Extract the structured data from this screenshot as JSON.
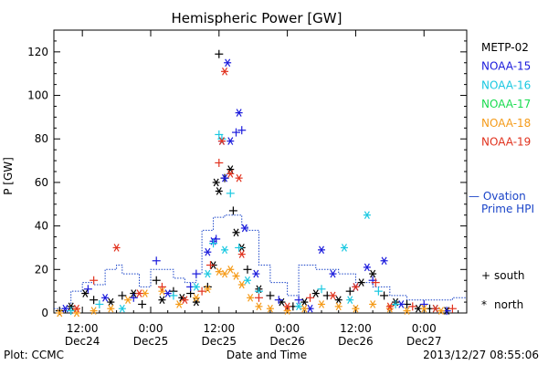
{
  "chart_data": {
    "type": "scatter",
    "title": "Hemispheric Power [GW]",
    "ylabel": "P [GW]",
    "xlabel": "Date and Time",
    "ylim": [
      0,
      130
    ],
    "yticks": [
      0,
      20,
      40,
      60,
      80,
      100,
      120
    ],
    "xlim": [
      "2013-12-24 07:00",
      "2013-12-27 07:30"
    ],
    "xticks": [
      {
        "t": "2013-12-24 12:00",
        "line1": "12:00",
        "line2": "Dec24"
      },
      {
        "t": "2013-12-25 00:00",
        "line1": "0:00",
        "line2": "Dec25"
      },
      {
        "t": "2013-12-25 12:00",
        "line1": "12:00",
        "line2": "Dec25"
      },
      {
        "t": "2013-12-26 00:00",
        "line1": "0:00",
        "line2": "Dec26"
      },
      {
        "t": "2013-12-26 12:00",
        "line1": "12:00",
        "line2": "Dec26"
      },
      {
        "t": "2013-12-27 00:00",
        "line1": "0:00",
        "line2": "Dec27"
      }
    ],
    "series": [
      {
        "name": "METP-02",
        "color": "#000000",
        "points": [
          [
            "2013-12-24 08:00",
            1,
            "s"
          ],
          [
            "2013-12-24 10:00",
            3,
            "n"
          ],
          [
            "2013-12-24 12:30",
            9,
            "n"
          ],
          [
            "2013-12-24 14:00",
            6,
            "s"
          ],
          [
            "2013-12-24 17:00",
            5,
            "n"
          ],
          [
            "2013-12-24 19:00",
            8,
            "s"
          ],
          [
            "2013-12-24 21:00",
            9,
            "n"
          ],
          [
            "2013-12-24 22:30",
            4,
            "s"
          ],
          [
            "2013-12-25 01:00",
            15,
            "s"
          ],
          [
            "2013-12-25 02:00",
            6,
            "n"
          ],
          [
            "2013-12-25 04:00",
            10,
            "s"
          ],
          [
            "2013-12-25 05:30",
            7,
            "n"
          ],
          [
            "2013-12-25 07:00",
            9,
            "s"
          ],
          [
            "2013-12-25 08:00",
            5,
            "n"
          ],
          [
            "2013-12-25 10:00",
            12,
            "s"
          ],
          [
            "2013-12-25 11:00",
            22,
            "n"
          ],
          [
            "2013-12-25 11:30",
            60,
            "n"
          ],
          [
            "2013-12-25 12:00",
            56,
            "n"
          ],
          [
            "2013-12-25 12:00",
            119,
            "s"
          ],
          [
            "2013-12-25 13:00",
            62,
            "s"
          ],
          [
            "2013-12-25 14:00",
            66,
            "n"
          ],
          [
            "2013-12-25 14:30",
            47,
            "s"
          ],
          [
            "2013-12-25 15:00",
            37,
            "n"
          ],
          [
            "2013-12-25 16:00",
            30,
            "n"
          ],
          [
            "2013-12-25 17:00",
            20,
            "s"
          ],
          [
            "2013-12-25 19:00",
            11,
            "n"
          ],
          [
            "2013-12-25 21:00",
            8,
            "s"
          ],
          [
            "2013-12-25 23:00",
            5,
            "n"
          ],
          [
            "2013-12-26 01:00",
            3,
            "s"
          ],
          [
            "2013-12-26 03:00",
            5,
            "n"
          ],
          [
            "2013-12-26 05:00",
            9,
            "n"
          ],
          [
            "2013-12-26 07:00",
            8,
            "s"
          ],
          [
            "2013-12-26 09:00",
            6,
            "n"
          ],
          [
            "2013-12-26 11:00",
            10,
            "s"
          ],
          [
            "2013-12-26 13:00",
            14,
            "n"
          ],
          [
            "2013-12-26 15:00",
            18,
            "n"
          ],
          [
            "2013-12-26 17:00",
            8,
            "s"
          ],
          [
            "2013-12-26 19:00",
            5,
            "n"
          ],
          [
            "2013-12-26 21:00",
            4,
            "s"
          ],
          [
            "2013-12-26 23:00",
            2,
            "n"
          ],
          [
            "2013-12-27 01:00",
            2,
            "s"
          ],
          [
            "2013-12-27 04:00",
            1,
            "n"
          ]
        ]
      },
      {
        "name": "NOAA-15",
        "color": "#1a1adc",
        "points": [
          [
            "2013-12-24 09:00",
            2,
            "n"
          ],
          [
            "2013-12-24 13:00",
            11,
            "s"
          ],
          [
            "2013-12-24 16:00",
            7,
            "n"
          ],
          [
            "2013-12-24 21:00",
            7,
            "s"
          ],
          [
            "2013-12-25 01:00",
            24,
            "s"
          ],
          [
            "2013-12-25 03:00",
            9,
            "n"
          ],
          [
            "2013-12-25 07:00",
            12,
            "s"
          ],
          [
            "2013-12-25 08:00",
            18,
            "s"
          ],
          [
            "2013-12-25 10:00",
            28,
            "n"
          ],
          [
            "2013-12-25 11:00",
            33,
            "n"
          ],
          [
            "2013-12-25 11:30",
            34,
            "s"
          ],
          [
            "2013-12-25 12:30",
            79,
            "n"
          ],
          [
            "2013-12-25 13:00",
            62,
            "n"
          ],
          [
            "2013-12-25 13:30",
            115,
            "n"
          ],
          [
            "2013-12-25 14:00",
            79,
            "n"
          ],
          [
            "2013-12-25 15:00",
            83,
            "s"
          ],
          [
            "2013-12-25 15:30",
            92,
            "n"
          ],
          [
            "2013-12-25 16:00",
            84,
            "s"
          ],
          [
            "2013-12-25 16:30",
            39,
            "n"
          ],
          [
            "2013-12-25 18:30",
            18,
            "n"
          ],
          [
            "2013-12-25 22:30",
            6,
            "s"
          ],
          [
            "2013-12-26 02:00",
            6,
            "s"
          ],
          [
            "2013-12-26 04:00",
            2,
            "n"
          ],
          [
            "2013-12-26 06:00",
            29,
            "n"
          ],
          [
            "2013-12-26 08:00",
            18,
            "n"
          ],
          [
            "2013-12-26 12:00",
            12,
            "n"
          ],
          [
            "2013-12-26 14:00",
            21,
            "n"
          ],
          [
            "2013-12-26 15:00",
            15,
            "s"
          ],
          [
            "2013-12-26 17:00",
            24,
            "n"
          ],
          [
            "2013-12-26 20:00",
            4,
            "n"
          ],
          [
            "2013-12-27 00:00",
            4,
            "s"
          ],
          [
            "2013-12-27 04:00",
            1,
            "s"
          ]
        ]
      },
      {
        "name": "NOAA-16",
        "color": "#19c8e1",
        "points": [
          [
            "2013-12-24 10:00",
            1,
            "s"
          ],
          [
            "2013-12-24 15:00",
            4,
            "s"
          ],
          [
            "2013-12-24 19:00",
            2,
            "n"
          ],
          [
            "2013-12-25 04:00",
            8,
            "s"
          ],
          [
            "2013-12-25 08:00",
            12,
            "n"
          ],
          [
            "2013-12-25 10:00",
            18,
            "n"
          ],
          [
            "2013-12-25 11:00",
            32,
            "s"
          ],
          [
            "2013-12-25 12:00",
            82,
            "s"
          ],
          [
            "2013-12-25 12:30",
            80,
            "s"
          ],
          [
            "2013-12-25 13:00",
            29,
            "n"
          ],
          [
            "2013-12-25 14:00",
            55,
            "s"
          ],
          [
            "2013-12-25 15:30",
            30,
            "s"
          ],
          [
            "2013-12-25 17:00",
            15,
            "n"
          ],
          [
            "2013-12-25 19:00",
            10,
            "s"
          ],
          [
            "2013-12-26 02:00",
            3,
            "n"
          ],
          [
            "2013-12-26 06:00",
            11,
            "s"
          ],
          [
            "2013-12-26 10:00",
            30,
            "n"
          ],
          [
            "2013-12-26 11:00",
            6,
            "n"
          ],
          [
            "2013-12-26 14:00",
            45,
            "n"
          ],
          [
            "2013-12-26 16:00",
            10,
            "s"
          ],
          [
            "2013-12-26 19:00",
            4,
            "s"
          ],
          [
            "2013-12-27 02:00",
            2,
            "n"
          ]
        ]
      },
      {
        "name": "NOAA-17",
        "color": "#19dc50",
        "points": []
      },
      {
        "name": "NOAA-18",
        "color": "#f59b19",
        "points": [
          [
            "2013-12-24 08:00",
            0,
            "n"
          ],
          [
            "2013-12-24 11:00",
            0,
            "n"
          ],
          [
            "2013-12-24 14:00",
            1,
            "n"
          ],
          [
            "2013-12-24 17:00",
            2,
            "n"
          ],
          [
            "2013-12-24 20:00",
            6,
            "n"
          ],
          [
            "2013-12-24 23:00",
            9,
            "n"
          ],
          [
            "2013-12-25 02:00",
            10,
            "n"
          ],
          [
            "2013-12-25 05:00",
            4,
            "n"
          ],
          [
            "2013-12-25 08:00",
            7,
            "n"
          ],
          [
            "2013-12-25 10:00",
            11,
            "n"
          ],
          [
            "2013-12-25 12:00",
            19,
            "n"
          ],
          [
            "2013-12-25 13:00",
            18,
            "n"
          ],
          [
            "2013-12-25 14:00",
            20,
            "n"
          ],
          [
            "2013-12-25 15:00",
            17,
            "n"
          ],
          [
            "2013-12-25 16:00",
            13,
            "n"
          ],
          [
            "2013-12-25 17:30",
            7,
            "n"
          ],
          [
            "2013-12-25 19:00",
            3,
            "n"
          ],
          [
            "2013-12-25 21:00",
            2,
            "n"
          ],
          [
            "2013-12-26 00:00",
            1,
            "n"
          ],
          [
            "2013-12-26 03:00",
            2,
            "n"
          ],
          [
            "2013-12-26 06:00",
            4,
            "n"
          ],
          [
            "2013-12-26 09:00",
            3,
            "n"
          ],
          [
            "2013-12-26 12:00",
            2,
            "n"
          ],
          [
            "2013-12-26 15:00",
            4,
            "n"
          ],
          [
            "2013-12-26 18:00",
            2,
            "n"
          ],
          [
            "2013-12-26 21:00",
            1,
            "n"
          ],
          [
            "2013-12-27 00:00",
            2,
            "n"
          ],
          [
            "2013-12-27 03:00",
            1,
            "n"
          ]
        ]
      },
      {
        "name": "NOAA-19",
        "color": "#e1321e",
        "points": [
          [
            "2013-12-24 11:00",
            2,
            "n"
          ],
          [
            "2013-12-24 14:00",
            15,
            "s"
          ],
          [
            "2013-12-24 18:00",
            30,
            "n"
          ],
          [
            "2013-12-24 22:00",
            9,
            "n"
          ],
          [
            "2013-12-25 02:00",
            12,
            "s"
          ],
          [
            "2013-12-25 06:00",
            6,
            "n"
          ],
          [
            "2013-12-25 09:00",
            10,
            "s"
          ],
          [
            "2013-12-25 10:30",
            22,
            "s"
          ],
          [
            "2013-12-25 12:00",
            69,
            "s"
          ],
          [
            "2013-12-25 12:30",
            79,
            "n"
          ],
          [
            "2013-12-25 13:00",
            111,
            "n"
          ],
          [
            "2013-12-25 14:00",
            64,
            "n"
          ],
          [
            "2013-12-25 15:30",
            62,
            "n"
          ],
          [
            "2013-12-25 16:00",
            27,
            "n"
          ],
          [
            "2013-12-25 19:00",
            7,
            "s"
          ],
          [
            "2013-12-26 00:00",
            3,
            "n"
          ],
          [
            "2013-12-26 04:00",
            7,
            "s"
          ],
          [
            "2013-12-26 08:00",
            8,
            "n"
          ],
          [
            "2013-12-26 12:00",
            12,
            "n"
          ],
          [
            "2013-12-26 15:30",
            14,
            "s"
          ],
          [
            "2013-12-26 18:00",
            3,
            "n"
          ],
          [
            "2013-12-26 22:00",
            3,
            "s"
          ],
          [
            "2013-12-27 02:00",
            2,
            "n"
          ],
          [
            "2013-12-27 05:00",
            2,
            "s"
          ]
        ]
      }
    ],
    "ovation": {
      "label_line1": "— Ovation",
      "label_line2": "Prime HPI",
      "color": "#1a44c8",
      "points": [
        [
          "2013-12-24 07:00",
          2
        ],
        [
          "2013-12-24 10:00",
          10
        ],
        [
          "2013-12-24 12:00",
          14
        ],
        [
          "2013-12-24 14:00",
          13
        ],
        [
          "2013-12-24 16:00",
          20
        ],
        [
          "2013-12-24 18:00",
          22
        ],
        [
          "2013-12-24 19:00",
          18
        ],
        [
          "2013-12-24 22:00",
          12
        ],
        [
          "2013-12-25 00:00",
          20
        ],
        [
          "2013-12-25 04:00",
          16
        ],
        [
          "2013-12-25 06:00",
          14
        ],
        [
          "2013-12-25 08:00",
          18
        ],
        [
          "2013-12-25 09:00",
          38
        ],
        [
          "2013-12-25 11:00",
          44
        ],
        [
          "2013-12-25 13:00",
          45
        ],
        [
          "2013-12-25 16:00",
          40
        ],
        [
          "2013-12-25 17:00",
          38
        ],
        [
          "2013-12-25 19:00",
          22
        ],
        [
          "2013-12-25 21:00",
          14
        ],
        [
          "2013-12-26 00:00",
          8
        ],
        [
          "2013-12-26 02:00",
          22
        ],
        [
          "2013-12-26 05:00",
          20
        ],
        [
          "2013-12-26 09:00",
          18
        ],
        [
          "2013-12-26 12:00",
          14
        ],
        [
          "2013-12-26 15:00",
          12
        ],
        [
          "2013-12-26 18:00",
          8
        ],
        [
          "2013-12-26 21:00",
          6
        ],
        [
          "2013-12-27 00:00",
          6
        ],
        [
          "2013-12-27 05:00",
          7
        ],
        [
          "2013-12-27 07:30",
          7
        ]
      ]
    },
    "symbol_legend": [
      {
        "symbol": "+",
        "label": "south"
      },
      {
        "symbol": "*",
        "label": "north"
      }
    ]
  },
  "footer": {
    "left": "Plot: CCMC",
    "right": "2013/12/27 08:55:06"
  }
}
